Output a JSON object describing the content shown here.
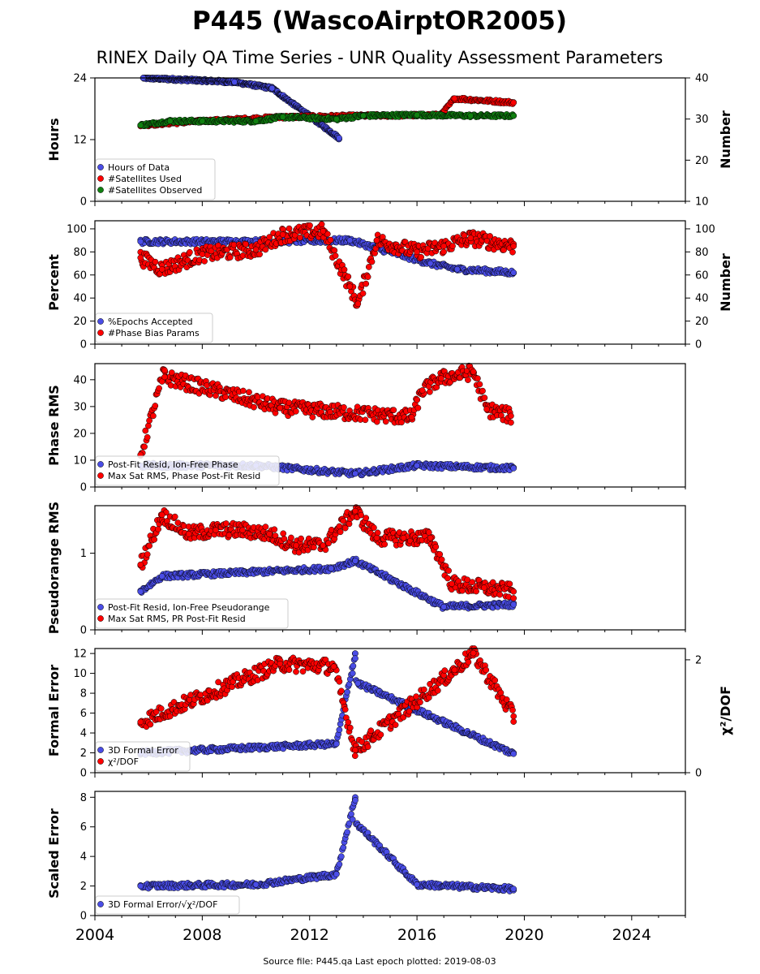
{
  "figure": {
    "title": "P445 (WascoAirptOR2005)",
    "subtitle": "RINEX Daily QA Time Series - UNR Quality Assessment Parameters",
    "footer": "Source file: P445.qa Last epoch plotted: 2019-08-03",
    "x_ticks": [
      "2004",
      "2008",
      "2012",
      "2016",
      "2020",
      "2024"
    ]
  },
  "colors": {
    "blue": "#4a4de6",
    "red": "#ff0000",
    "green": "#108010",
    "edge": "#000000"
  },
  "chart_data": [
    {
      "type": "scatter",
      "ylabel": "Hours",
      "ylabel_right": "Number",
      "yticks_left": [
        "0",
        "12",
        "24"
      ],
      "yticks_right": [
        "10",
        "20",
        "30",
        "40"
      ],
      "ylim": [
        0,
        24
      ],
      "ylim_right": [
        10,
        40
      ],
      "xlim": [
        2004,
        2026
      ],
      "legend": [
        "Hours of Data",
        "#Satellites Used",
        "#Satellites Observed"
      ],
      "series": [
        {
          "name": "Hours of Data",
          "axis": "left",
          "color": "blue",
          "x_start": 2005.7,
          "x_end": 2019.6,
          "points": [
            [
              2005.8,
              24
            ],
            [
              2009.2,
              23.2
            ],
            [
              2010.6,
              22
            ],
            [
              2013.1,
              12.3
            ]
          ]
        },
        {
          "name": "#Satellites Used",
          "axis": "right",
          "color": "red",
          "x_start": 2005.7,
          "x_end": 2019.6,
          "points": [
            [
              2005.7,
              28.5
            ],
            [
              2008.0,
              29.5
            ],
            [
              2011.0,
              30.5
            ],
            [
              2014.0,
              30.8
            ],
            [
              2016.9,
              31
            ],
            [
              2017.4,
              35
            ],
            [
              2019.6,
              34
            ]
          ]
        },
        {
          "name": "#Satellites Observed",
          "axis": "right",
          "color": "green",
          "x_start": 2005.7,
          "x_end": 2019.6,
          "points": [
            [
              2005.7,
              28.5
            ],
            [
              2006.8,
              29.5
            ],
            [
              2008.0,
              29.5
            ],
            [
              2010.0,
              29.5
            ],
            [
              2011.0,
              30.5
            ],
            [
              2013.0,
              30
            ],
            [
              2014.0,
              30.8
            ],
            [
              2016.0,
              31
            ],
            [
              2018.0,
              30.8
            ],
            [
              2019.6,
              30.8
            ]
          ]
        }
      ]
    },
    {
      "type": "scatter",
      "ylabel": "Percent",
      "ylabel_right": "Number",
      "yticks_left": [
        "0",
        "20",
        "40",
        "60",
        "80",
        "100"
      ],
      "yticks_right": [
        "0",
        "20",
        "40",
        "60",
        "80",
        "100"
      ],
      "ylim": [
        0,
        107
      ],
      "ylim_right": [
        0,
        107
      ],
      "xlim": [
        2004,
        2026
      ],
      "legend": [
        "%Epochs Accepted",
        "#Phase Bias Params"
      ],
      "series": [
        {
          "name": "%Epochs Accepted",
          "axis": "left",
          "color": "blue",
          "points": [
            [
              2005.7,
              89
            ],
            [
              2010.0,
              89
            ],
            [
              2013.5,
              90
            ],
            [
              2016.5,
              70
            ],
            [
              2017.5,
              65
            ],
            [
              2019.6,
              62
            ]
          ]
        },
        {
          "name": "#Phase Bias Params",
          "axis": "right",
          "color": "red",
          "points": [
            [
              2005.7,
              75
            ],
            [
              2006.5,
              65
            ],
            [
              2008.0,
              78
            ],
            [
              2010.0,
              82
            ],
            [
              2011.0,
              95
            ],
            [
              2012.5,
              98
            ],
            [
              2013.5,
              50
            ],
            [
              2013.8,
              35
            ],
            [
              2014.5,
              90
            ],
            [
              2016.0,
              80
            ],
            [
              2017.0,
              85
            ],
            [
              2018.0,
              92
            ],
            [
              2019.6,
              85
            ]
          ]
        }
      ]
    },
    {
      "type": "scatter",
      "ylabel": "Phase RMS",
      "yticks_left": [
        "0",
        "10",
        "20",
        "30",
        "40"
      ],
      "ylim": [
        0,
        46
      ],
      "xlim": [
        2004,
        2026
      ],
      "legend": [
        "Post-Fit Resid, Ion-Free Phase",
        "Max Sat RMS, Phase Post-Fit Resid"
      ],
      "series": [
        {
          "name": "Post-Fit Resid, Ion-Free Phase",
          "color": "blue",
          "points": [
            [
              2005.7,
              8
            ],
            [
              2010.0,
              8
            ],
            [
              2013.7,
              5
            ],
            [
              2016.0,
              8
            ],
            [
              2019.6,
              7
            ]
          ]
        },
        {
          "name": "Max Sat RMS, Phase Post-Fit Resid",
          "color": "red",
          "points": [
            [
              2005.7,
              12
            ],
            [
              2006.6,
              43.5
            ],
            [
              2006.6,
              41
            ],
            [
              2010.9,
              29.5
            ],
            [
              2015.8,
              26
            ],
            [
              2016.2,
              36
            ],
            [
              2016.9,
              40.5
            ],
            [
              2018.1,
              43
            ],
            [
              2018.6,
              29
            ],
            [
              2019.5,
              26.5
            ]
          ]
        }
      ]
    },
    {
      "type": "scatter",
      "ylabel": "Pseudorange RMS",
      "yticks_left": [
        "0",
        "1"
      ],
      "ylim": [
        0,
        1.62
      ],
      "xlim": [
        2004,
        2026
      ],
      "legend": [
        "Post-Fit Resid, Ion-Free Pseudorange",
        "Max Sat RMS, PR Post-Fit Resid"
      ],
      "series": [
        {
          "name": "Post-Fit Resid, Ion-Free Pseudorange",
          "color": "blue",
          "points": [
            [
              2005.7,
              0.5
            ],
            [
              2006.5,
              0.7
            ],
            [
              2012.8,
              0.8
            ],
            [
              2013.7,
              0.9
            ],
            [
              2017.0,
              0.3
            ],
            [
              2019.6,
              0.33
            ]
          ]
        },
        {
          "name": "Max Sat RMS, PR Post-Fit Resid",
          "color": "red",
          "points": [
            [
              2005.7,
              0.85
            ],
            [
              2006.5,
              1.5
            ],
            [
              2007.5,
              1.25
            ],
            [
              2008.5,
              1.3
            ],
            [
              2009.5,
              1.3
            ],
            [
              2010.5,
              1.25
            ],
            [
              2011.5,
              1.1
            ],
            [
              2012.5,
              1.1
            ],
            [
              2013.7,
              1.55
            ],
            [
              2014.5,
              1.2
            ],
            [
              2015.5,
              1.2
            ],
            [
              2016.5,
              1.2
            ],
            [
              2017.3,
              0.6
            ],
            [
              2018.5,
              0.55
            ],
            [
              2019.6,
              0.5
            ]
          ]
        }
      ]
    },
    {
      "type": "scatter",
      "ylabel": "Formal Error",
      "ylabel_right": "χ²/DOF",
      "yticks_left": [
        "0",
        "2",
        "4",
        "6",
        "8",
        "10",
        "12"
      ],
      "yticks_right": [
        "0",
        "2"
      ],
      "ylim": [
        0,
        12.5
      ],
      "ylim_right": [
        0,
        2.2
      ],
      "xlim": [
        2004,
        2026
      ],
      "legend": [
        "3D Formal Error",
        "χ²/DOF"
      ],
      "series": [
        {
          "name": "3D Formal Error",
          "axis": "left",
          "color": "blue",
          "points": [
            [
              2005.7,
              2
            ],
            [
              2013.0,
              2.9
            ],
            [
              2013.7,
              12
            ],
            [
              2013.7,
              11.5
            ],
            [
              2013.6,
              10
            ],
            [
              2013.8,
              9
            ],
            [
              2019.6,
              1.9
            ]
          ]
        },
        {
          "name": "χ²/DOF",
          "axis": "right",
          "color": "red",
          "points": [
            [
              2005.7,
              0.9
            ],
            [
              2010.9,
              1.93
            ],
            [
              2012.9,
              1.88
            ],
            [
              2013.7,
              0.4
            ],
            [
              2017.4,
              1.82
            ],
            [
              2018.1,
              2.12
            ],
            [
              2019.6,
              1.0
            ]
          ]
        }
      ]
    },
    {
      "type": "scatter",
      "ylabel": "Scaled Error",
      "yticks_left": [
        "0",
        "2",
        "4",
        "6",
        "8"
      ],
      "ylim": [
        0,
        8.4
      ],
      "xlim": [
        2004,
        2026
      ],
      "legend": [
        "3D Formal Error/√χ²/DOF"
      ],
      "series": [
        {
          "name": "3D Formal Error/√χ²/DOF",
          "color": "blue",
          "points": [
            [
              2005.7,
              2
            ],
            [
              2010.0,
              2.1
            ],
            [
              2013.0,
              2.8
            ],
            [
              2013.7,
              8
            ],
            [
              2013.7,
              7.8
            ],
            [
              2013.6,
              6.5
            ],
            [
              2016.0,
              2.1
            ],
            [
              2019.6,
              1.8
            ]
          ]
        }
      ]
    }
  ]
}
